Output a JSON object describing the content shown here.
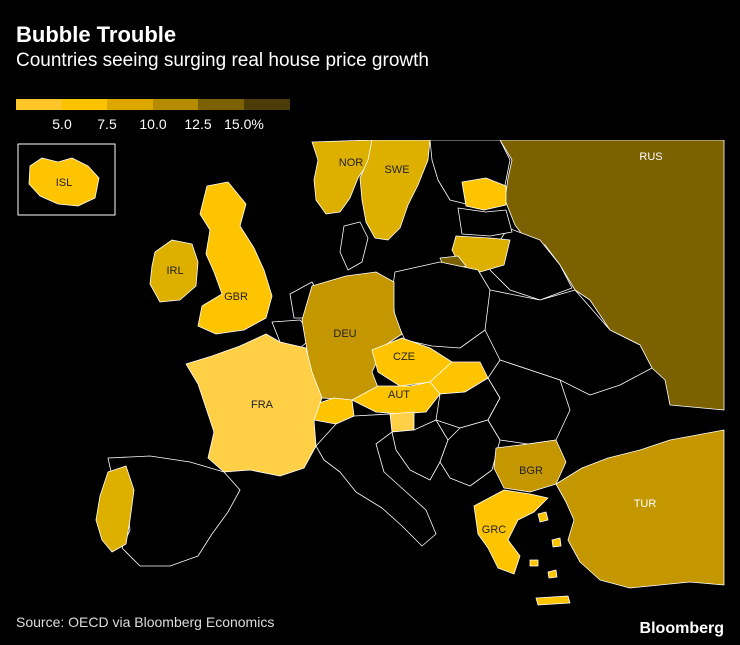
{
  "header": {
    "title": "Bubble Trouble",
    "subtitle": "Countries seeing surging real house price growth"
  },
  "legend": {
    "colors": [
      "#ffc629",
      "#ffc200",
      "#dca800",
      "#b58b00",
      "#7b6100",
      "#4c3c08"
    ],
    "labels": [
      "5.0",
      "7.5",
      "10.0",
      "12.5",
      "15.0%"
    ]
  },
  "map": {
    "colors": {
      "bin1": "#ffcf45",
      "bin2": "#ffc400",
      "bin3": "#ddb000",
      "bin4": "#c49600",
      "bin5": "#7b6100",
      "nodata": "#000000",
      "border": "#ffffff"
    },
    "countries": [
      {
        "code": "ISL",
        "label": "ISL"
      },
      {
        "code": "NOR",
        "label": "NOR"
      },
      {
        "code": "SWE",
        "label": "SWE"
      },
      {
        "code": "RUS",
        "label": "RUS"
      },
      {
        "code": "IRL",
        "label": "IRL"
      },
      {
        "code": "GBR",
        "label": "GBR"
      },
      {
        "code": "DEU",
        "label": "DEU"
      },
      {
        "code": "CZE",
        "label": "CZE"
      },
      {
        "code": "AUT",
        "label": "AUT"
      },
      {
        "code": "FRA",
        "label": "FRA"
      },
      {
        "code": "BGR",
        "label": "BGR"
      },
      {
        "code": "TUR",
        "label": "TUR"
      },
      {
        "code": "GRC",
        "label": "GRC"
      }
    ]
  },
  "footer": {
    "source": "Source: OECD via Bloomberg Economics",
    "brand": "Bloomberg"
  }
}
